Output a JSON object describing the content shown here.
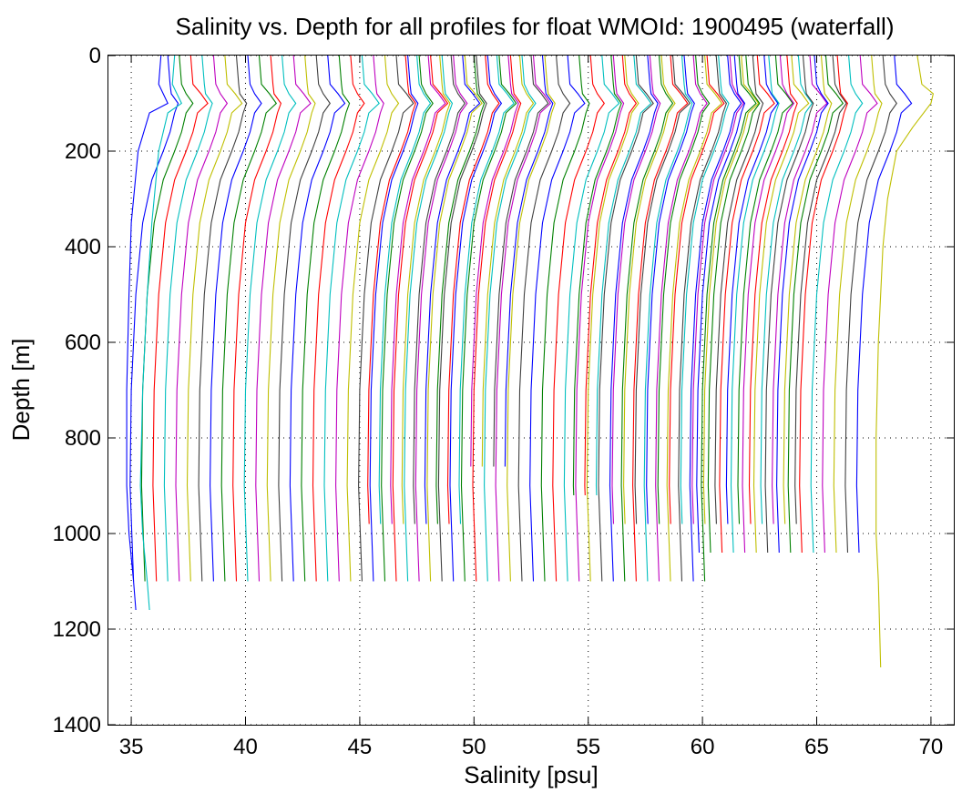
{
  "chart_data": {
    "type": "line",
    "title": "Salinity vs. Depth for all profiles for float WMOId: 1900495 (waterfall)",
    "xlabel": "Salinity [psu]",
    "ylabel": "Depth [m]",
    "xlim": [
      34,
      71
    ],
    "ylim": [
      0,
      1400
    ],
    "y_reversed": true,
    "grid": true,
    "xticks": [
      35,
      40,
      45,
      50,
      55,
      60,
      65,
      70
    ],
    "yticks": [
      0,
      200,
      400,
      600,
      800,
      1000,
      1200,
      1400
    ],
    "xtick_labels": [
      "35",
      "40",
      "45",
      "50",
      "55",
      "60",
      "65",
      "70"
    ],
    "ytick_labels": [
      "0",
      "200",
      "400",
      "600",
      "800",
      "1000",
      "1200",
      "1400"
    ],
    "colors": [
      "#0000ff",
      "#008000",
      "#ff0000",
      "#00bfbf",
      "#bf00bf",
      "#bfbf00",
      "#404040"
    ],
    "profile_shape": {
      "depth": [
        0,
        60,
        80,
        100,
        120,
        160,
        200,
        260,
        350,
        500,
        700,
        900,
        1100
      ],
      "salinity_offset": [
        -0.6,
        -0.5,
        -0.3,
        0.0,
        -0.3,
        -0.5,
        -0.8,
        -1.3,
        -1.7,
        -2.0,
        -2.2,
        -2.25,
        -2.1
      ]
    },
    "series_groups": [
      {
        "first_top": 37.2,
        "count": 51,
        "step": 0.5,
        "max_depth": 1100
      },
      {
        "first_top": 47.6,
        "count": 9,
        "step": 0.5,
        "max_depth": 980
      },
      {
        "first_top": 52.1,
        "count": 4,
        "step": 0.5,
        "max_depth": 860
      },
      {
        "first_top": 56.6,
        "count": 3,
        "step": 0.5,
        "max_depth": 920
      },
      {
        "first_top": 58.3,
        "count": 17,
        "step": 0.5,
        "max_depth": 980
      },
      {
        "first_top": 62.0,
        "count": 15,
        "step": 0.5,
        "max_depth": 1040
      }
    ],
    "extra_series": [
      {
        "x": [
          36.3,
          36.2,
          36.4,
          36.6,
          35.8,
          35.3,
          35.0,
          34.9,
          34.8,
          34.8,
          34.9,
          35.1,
          35.2
        ],
        "y": [
          0,
          60,
          80,
          100,
          120,
          200,
          350,
          500,
          700,
          900,
          1000,
          1100,
          1160
        ],
        "color": "#0000ff"
      },
      {
        "x": [
          36.9,
          36.8,
          37.0,
          37.2,
          36.6,
          36.2,
          35.9,
          35.7,
          35.5,
          35.4,
          35.5,
          35.7,
          35.8
        ],
        "y": [
          0,
          60,
          80,
          100,
          120,
          200,
          350,
          500,
          700,
          900,
          1000,
          1100,
          1160
        ],
        "color": "#00bfbf"
      },
      {
        "x": [
          69.4,
          69.6,
          70.1,
          70.0,
          69.2,
          68.5,
          68.1,
          67.9,
          67.7,
          67.6,
          67.6,
          67.7,
          67.8
        ],
        "y": [
          0,
          60,
          80,
          100,
          150,
          200,
          300,
          400,
          600,
          800,
          1000,
          1100,
          1280
        ],
        "color": "#bfbf00"
      }
    ]
  }
}
